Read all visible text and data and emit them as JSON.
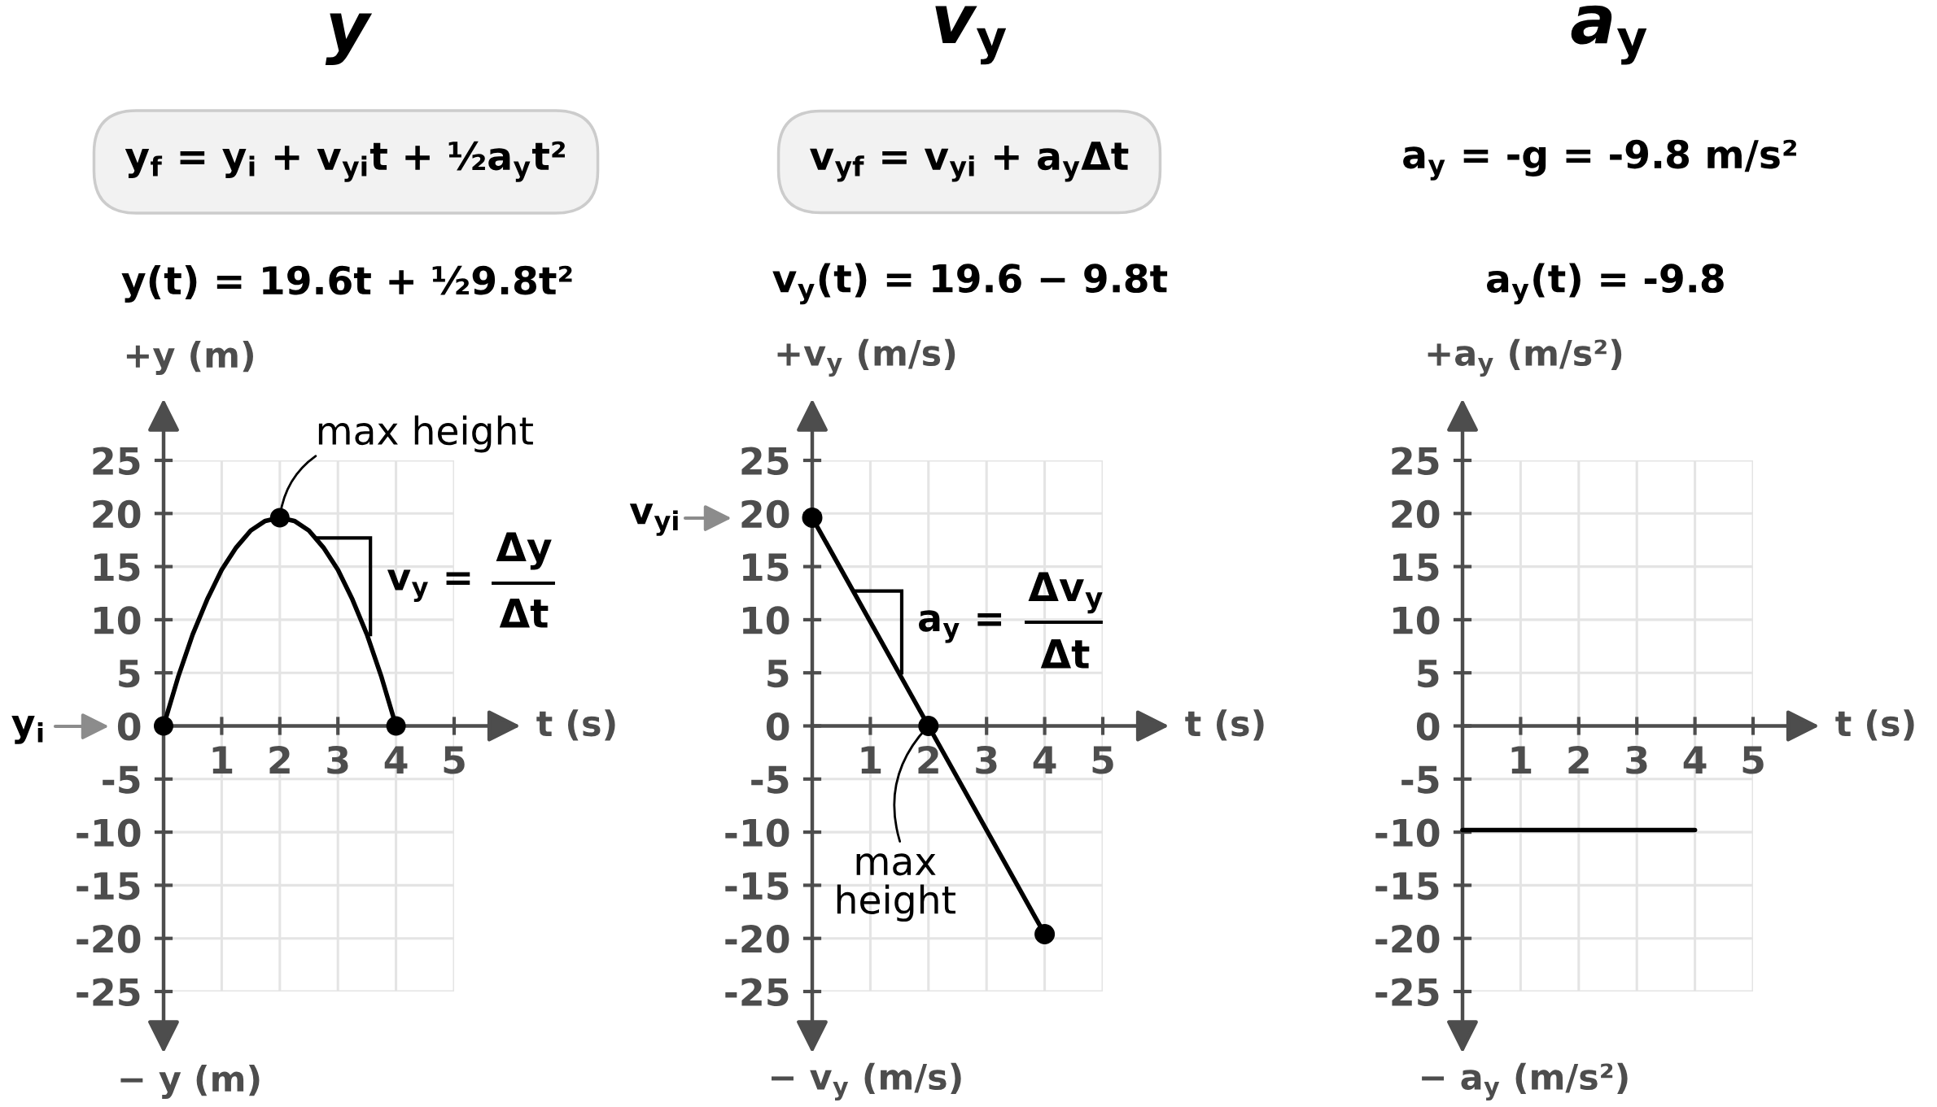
{
  "chart_data": [
    {
      "type": "line",
      "title": "y",
      "subtitle": "y$_{f}$ = y$_{i}$ + v$_{yi}$t + ½a$_{y}$t²",
      "xlabel": "t (s)",
      "ylabel": "+y (m)",
      "annotations": [
        "y(t) = 19.6t + ½9.8t²",
        "− y (m)",
        "y$_{i}$",
        {
          "text": "max height",
          "x": 2,
          "y": 19.6
        },
        {
          "text": "v$_{y}$ =",
          "x": 3.5,
          "y": 8.6
        },
        "Δy",
        "Δt"
      ],
      "series": [
        {
          "type": "line",
          "color": "#000000",
          "x": [
            0,
            0.25,
            0.5,
            0.75,
            1,
            1.25,
            1.5,
            1.75,
            2,
            2.25,
            2.5,
            2.75,
            3,
            3.25,
            3.5,
            3.75,
            4
          ],
          "values": [
            0,
            4.6,
            8.6,
            11.9,
            14.7,
            16.8,
            18.4,
            19.3,
            19.6,
            19.3,
            18.4,
            16.8,
            14.7,
            11.9,
            8.6,
            4.6,
            0
          ]
        },
        {
          "type": "scatter",
          "marker": "circle",
          "color": "#000000",
          "x": [
            0,
            2,
            4
          ],
          "values": [
            0,
            19.6,
            0
          ]
        }
      ],
      "xlim": [
        0,
        5
      ],
      "xticks": [
        1,
        2,
        3,
        4,
        5
      ],
      "ylim": [
        -25,
        25
      ],
      "yticks": [
        -25,
        -20,
        -15,
        -10,
        -5,
        0,
        5,
        10,
        15,
        20,
        25
      ],
      "grid": true
    },
    {
      "type": "line",
      "title": "v$_{y}$",
      "subtitle": "v$_{yf}$ = v$_{yi}$ + a$_{y}$Δt",
      "xlabel": "t (s)",
      "ylabel": "+v$_{y}$ (m/s)",
      "annotations": [
        "v$_{y}$(t) = 19.6 − 9.8t",
        "− v$_{y}$ (m/s)",
        "v$_{yi}$",
        {
          "text": "max\nheight",
          "x": 2,
          "y": 0
        },
        {
          "text": "a$_{y}$ =",
          "x": 1.5,
          "y": 4.9
        },
        "Δv$_{y}$",
        "Δt"
      ],
      "marker": "circle",
      "series": [
        {
          "color": "#000000",
          "x": [
            0,
            2,
            4
          ],
          "values": [
            19.6,
            0,
            -19.6
          ]
        }
      ],
      "xlim": [
        0,
        5
      ],
      "xticks": [
        1,
        2,
        3,
        4,
        5
      ],
      "ylim": [
        -25,
        25
      ],
      "yticks": [
        -25,
        -20,
        -15,
        -10,
        -5,
        0,
        5,
        10,
        15,
        20,
        25
      ],
      "grid": true
    },
    {
      "type": "line",
      "title": "a$_{y}$",
      "subtitle": "a$_{y}$ = -g = -9.8 m/s²",
      "xlabel": "t (s)",
      "ylabel": "+a$_{y}$ (m/s²)",
      "annotations": [
        "a$_{y}$(t) = -9.8",
        "− a$_{y}$ (m/s²)"
      ],
      "series": [
        {
          "color": "#000000",
          "x": [
            0,
            4
          ],
          "values": [
            -9.8,
            -9.8
          ]
        }
      ],
      "xlim": [
        0,
        5
      ],
      "xticks": [
        1,
        2,
        3,
        4,
        5
      ],
      "ylim": [
        -25,
        25
      ],
      "yticks": [
        -25,
        -20,
        -15,
        -10,
        -5,
        0,
        5,
        10,
        15,
        20,
        25
      ],
      "grid": true
    }
  ]
}
